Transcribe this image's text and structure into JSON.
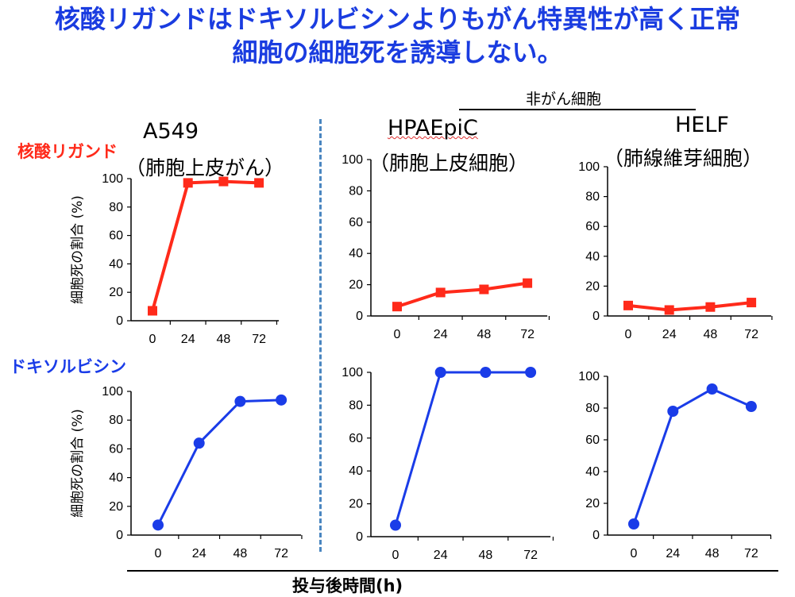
{
  "title": {
    "line1": "核酸リガンドはドキソルビシンよりもがん特異性が高く正常",
    "line2": "細胞の細胞死を誘導しない。"
  },
  "row_labels": {
    "aptamer": "核酸リガンド",
    "doxorubicin": "ドキソルビシン"
  },
  "columns": {
    "a549_name": "A549",
    "a549_desc": "（肺胞上皮がん）",
    "hpaepic_name": "HPAEpiC",
    "hpaepic_desc": "（肺胞上皮細胞）",
    "helf_name": "HELF",
    "helf_desc": "（肺線維芽細胞）",
    "noncancer_group": "非がん細胞"
  },
  "y_axis_label": "細胞死の割合 (%)",
  "x_axis_title": "投与後時間(h)",
  "colors": {
    "aptamer": "#ff2a1a",
    "doxorubicin": "#1a3ce8",
    "title": "#1a3ce0",
    "divider": "#4a86c0"
  },
  "chart_data": [
    {
      "type": "line",
      "id": "a549-aptamer",
      "categories": [
        "0",
        "24",
        "48",
        "72"
      ],
      "x": [
        0,
        24,
        48,
        72
      ],
      "series": [
        {
          "values": [
            7,
            97,
            98,
            97
          ],
          "marker": "square"
        }
      ],
      "ylim": [
        0,
        100
      ],
      "yticks": [
        0,
        20,
        40,
        60,
        80,
        100
      ],
      "ylabel": "細胞死の割合 (%)"
    },
    {
      "type": "line",
      "id": "hpaepic-aptamer",
      "categories": [
        "0",
        "24",
        "48",
        "72"
      ],
      "x": [
        0,
        24,
        48,
        72
      ],
      "series": [
        {
          "values": [
            6,
            15,
            17,
            21
          ],
          "marker": "square"
        }
      ],
      "ylim": [
        0,
        100
      ],
      "yticks": [
        0,
        20,
        40,
        60,
        80,
        100
      ]
    },
    {
      "type": "line",
      "id": "helf-aptamer",
      "categories": [
        "0",
        "24",
        "48",
        "72"
      ],
      "x": [
        0,
        24,
        48,
        72
      ],
      "series": [
        {
          "values": [
            7,
            4,
            6,
            9
          ],
          "marker": "square"
        }
      ],
      "ylim": [
        0,
        100
      ],
      "yticks": [
        0,
        20,
        40,
        60,
        80,
        100
      ]
    },
    {
      "type": "line",
      "id": "a549-dox",
      "categories": [
        "0",
        "24",
        "48",
        "72"
      ],
      "x": [
        0,
        24,
        48,
        72
      ],
      "series": [
        {
          "values": [
            7,
            64,
            93,
            94
          ],
          "marker": "circle"
        }
      ],
      "ylim": [
        0,
        100
      ],
      "yticks": [
        0,
        20,
        40,
        60,
        80,
        100
      ],
      "ylabel": "細胞死の割合 (%)"
    },
    {
      "type": "line",
      "id": "hpaepic-dox",
      "categories": [
        "0",
        "24",
        "48",
        "72"
      ],
      "x": [
        0,
        24,
        48,
        72
      ],
      "series": [
        {
          "values": [
            7,
            100,
            100,
            100
          ],
          "marker": "circle"
        }
      ],
      "ylim": [
        0,
        100
      ],
      "yticks": [
        0,
        20,
        40,
        60,
        80,
        100
      ]
    },
    {
      "type": "line",
      "id": "helf-dox",
      "categories": [
        "0",
        "24",
        "48",
        "72"
      ],
      "x": [
        0,
        24,
        48,
        72
      ],
      "series": [
        {
          "values": [
            7,
            78,
            92,
            81
          ],
          "marker": "circle"
        }
      ],
      "ylim": [
        0,
        100
      ],
      "yticks": [
        0,
        20,
        40,
        60,
        80,
        100
      ]
    }
  ]
}
